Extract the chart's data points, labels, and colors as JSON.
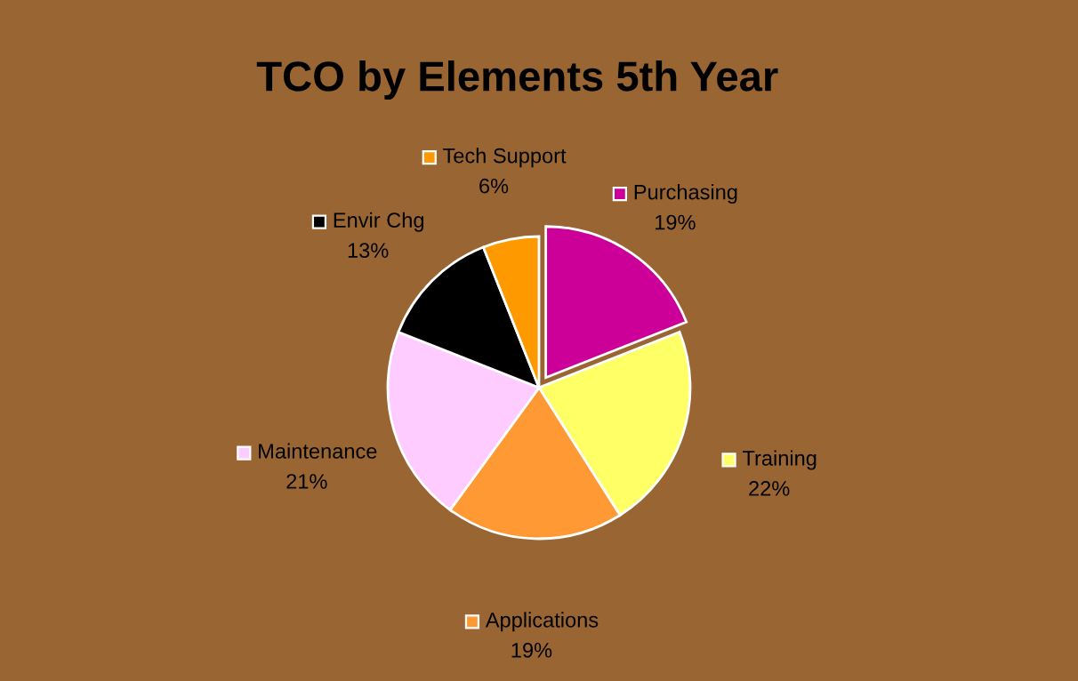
{
  "chart_data": {
    "type": "pie",
    "title": "TCO by Elements 5th Year",
    "categories": [
      "Purchasing",
      "Training",
      "Applications",
      "Maintenance",
      "Envir Chg",
      "Tech Support"
    ],
    "values": [
      19,
      22,
      19,
      21,
      13,
      6
    ],
    "colors": [
      "#cc0099",
      "#ffff66",
      "#ff9933",
      "#ffccff",
      "#000000",
      "#ff9900"
    ],
    "value_labels": [
      "19%",
      "22%",
      "19%",
      "21%",
      "13%",
      "6%"
    ],
    "legend": "center"
  }
}
